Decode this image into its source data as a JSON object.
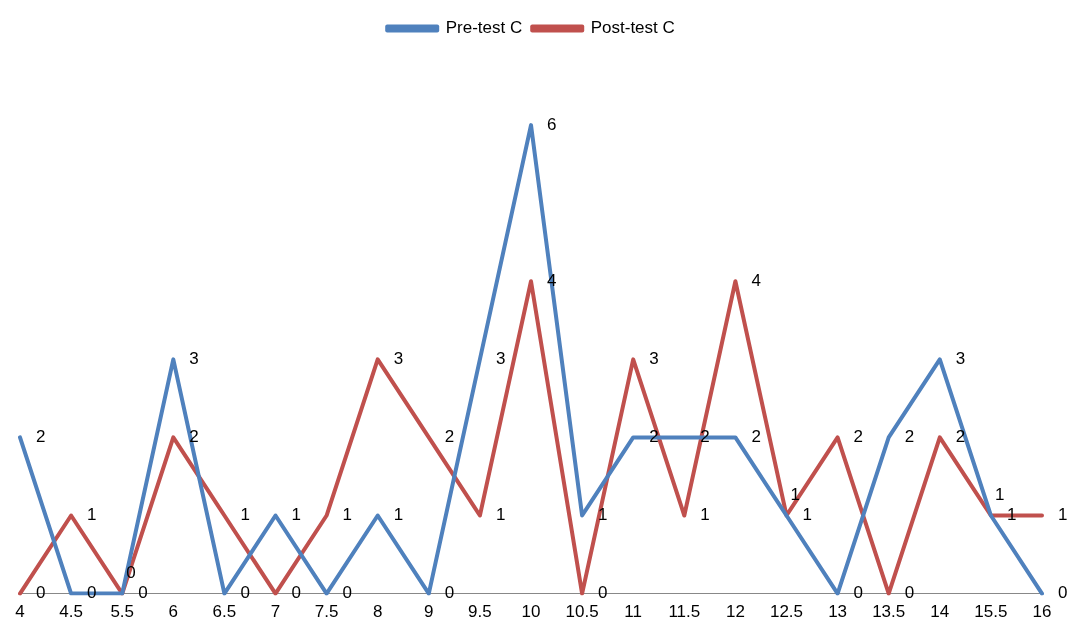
{
  "chart_data": {
    "type": "line",
    "categories": [
      "4",
      "4.5",
      "5.5",
      "6",
      "6.5",
      "7",
      "7.5",
      "8",
      "9",
      "9.5",
      "10",
      "10.5",
      "11",
      "11.5",
      "12",
      "12.5",
      "13",
      "13.5",
      "14",
      "15.5",
      "16"
    ],
    "series": [
      {
        "name": "Pre-test C",
        "color": "#4f81bd",
        "values": [
          2,
          0,
          0,
          3,
          0,
          1,
          0,
          1,
          0,
          3,
          6,
          1,
          2,
          2,
          2,
          1,
          0,
          2,
          3,
          1,
          0
        ]
      },
      {
        "name": "Post-test C",
        "color": "#c0504d",
        "values": [
          0,
          1,
          0,
          2,
          1,
          0,
          1,
          3,
          2,
          1,
          4,
          0,
          3,
          1,
          4,
          1,
          2,
          0,
          2,
          1,
          1
        ]
      }
    ],
    "data_labels": true,
    "legend": "top",
    "grid": false,
    "marker": "none",
    "line_style": "solid",
    "tick_labels": "x"
  }
}
